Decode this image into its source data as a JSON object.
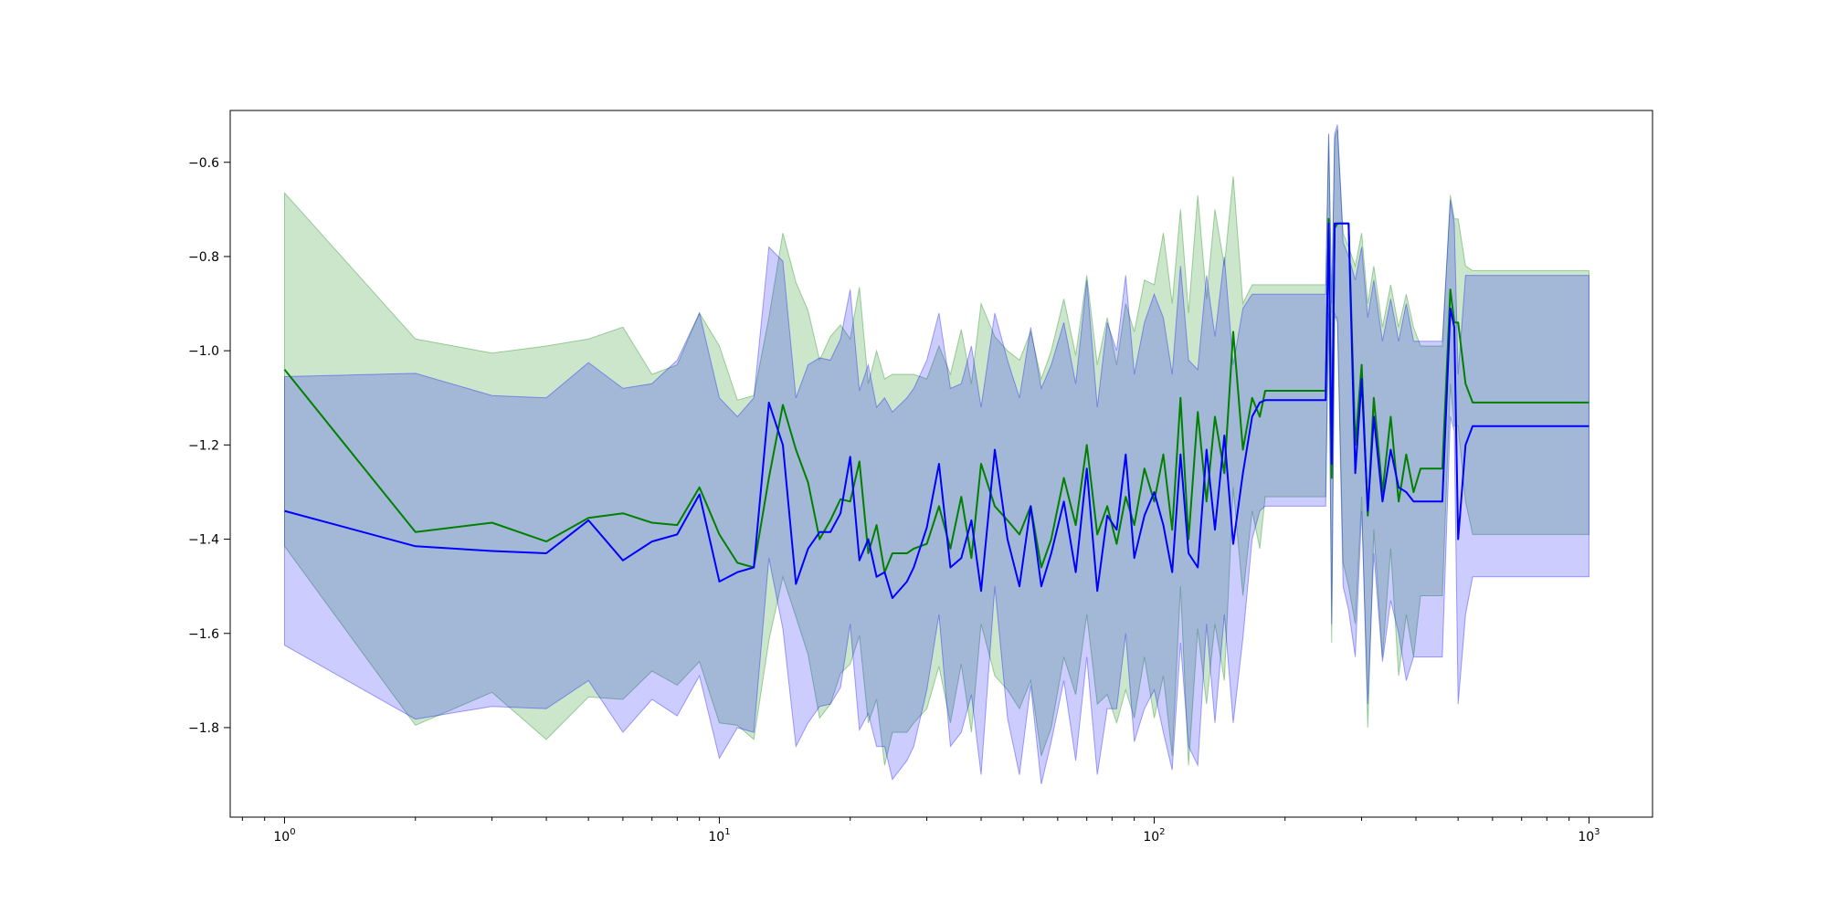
{
  "chart_data": {
    "type": "line",
    "title": "",
    "xlabel": "",
    "ylabel": "",
    "x_scale": "log",
    "xlim": [
      0.75,
      1400
    ],
    "ylim": [
      -1.99,
      -0.49
    ],
    "x_ticks": [
      {
        "value": 1,
        "base": "10",
        "exp": "0"
      },
      {
        "value": 10,
        "base": "10",
        "exp": "1"
      },
      {
        "value": 100,
        "base": "10",
        "exp": "2"
      },
      {
        "value": 1000,
        "base": "10",
        "exp": "3"
      }
    ],
    "y_ticks": [
      {
        "value": -1.8,
        "label": "−1.8"
      },
      {
        "value": -1.6,
        "label": "−1.6"
      },
      {
        "value": -1.4,
        "label": "−1.4"
      },
      {
        "value": -1.2,
        "label": "−1.2"
      },
      {
        "value": -1.0,
        "label": "−1.0"
      },
      {
        "value": -0.8,
        "label": "−0.8"
      },
      {
        "value": -0.6,
        "label": "−0.6"
      }
    ],
    "grid": false,
    "legend": "none",
    "series": [
      {
        "color": "#008000",
        "fill_color": "#008000",
        "fill_opacity": 0.2,
        "x": [
          1,
          2,
          3,
          4,
          5,
          6,
          7,
          8,
          9,
          10,
          11,
          12,
          13,
          14,
          15,
          16,
          17,
          18,
          19,
          20,
          21,
          22,
          23,
          24,
          25,
          27,
          28,
          30,
          32,
          34,
          36,
          38,
          40,
          43,
          46,
          49,
          52,
          55,
          58,
          62,
          66,
          70,
          74,
          78,
          82,
          86,
          90,
          95,
          100,
          105,
          110,
          115,
          120,
          126,
          132,
          138,
          145,
          152,
          160,
          168,
          175,
          180,
          200,
          230,
          248,
          252,
          256,
          260,
          264,
          272,
          280,
          290,
          300,
          310,
          320,
          335,
          350,
          365,
          380,
          395,
          410,
          430,
          460,
          480,
          490,
          500,
          520,
          540,
          560,
          600,
          700,
          800,
          900,
          1000
        ],
        "y": [
          -1.04,
          -1.385,
          -1.365,
          -1.405,
          -1.355,
          -1.345,
          -1.365,
          -1.37,
          -1.29,
          -1.39,
          -1.45,
          -1.46,
          -1.27,
          -1.115,
          -1.21,
          -1.28,
          -1.4,
          -1.36,
          -1.315,
          -1.32,
          -1.235,
          -1.43,
          -1.37,
          -1.47,
          -1.43,
          -1.43,
          -1.42,
          -1.41,
          -1.33,
          -1.42,
          -1.31,
          -1.44,
          -1.24,
          -1.33,
          -1.36,
          -1.39,
          -1.33,
          -1.46,
          -1.4,
          -1.27,
          -1.37,
          -1.2,
          -1.39,
          -1.33,
          -1.41,
          -1.31,
          -1.37,
          -1.25,
          -1.32,
          -1.22,
          -1.38,
          -1.1,
          -1.4,
          -1.13,
          -1.32,
          -1.14,
          -1.26,
          -0.96,
          -1.21,
          -1.1,
          -1.14,
          -1.085,
          -1.085,
          -1.085,
          -1.085,
          -0.72,
          -1.27,
          -0.74,
          -0.73,
          -0.73,
          -0.73,
          -1.2,
          -1.03,
          -1.35,
          -1.1,
          -1.3,
          -1.14,
          -1.32,
          -1.22,
          -1.3,
          -1.25,
          -1.25,
          -1.25,
          -0.87,
          -0.94,
          -0.94,
          -1.07,
          -1.11,
          -1.11,
          -1.11,
          -1.11,
          -1.11,
          -1.11,
          -1.11
        ],
        "y_upper": [
          -0.665,
          -0.975,
          -1.005,
          -0.99,
          -0.975,
          -0.95,
          -1.05,
          -1.03,
          -0.92,
          -0.99,
          -1.105,
          -1.095,
          -0.93,
          -0.75,
          -0.855,
          -0.915,
          -1.02,
          -0.97,
          -0.945,
          -0.975,
          -0.865,
          -1.07,
          -1.0,
          -1.06,
          -1.05,
          -1.05,
          -1.05,
          -1.06,
          -0.99,
          -1.05,
          -0.955,
          -1.07,
          -0.9,
          -0.97,
          -1.0,
          -1.02,
          -0.96,
          -1.06,
          -1.0,
          -0.89,
          -1.01,
          -0.84,
          -1.03,
          -0.93,
          -1.03,
          -0.9,
          -0.96,
          -0.85,
          -0.86,
          -0.75,
          -0.9,
          -0.7,
          -0.92,
          -0.67,
          -0.89,
          -0.7,
          -0.82,
          -0.63,
          -0.9,
          -0.86,
          -0.86,
          -0.86,
          -0.86,
          -0.86,
          -0.86,
          -0.54,
          -0.92,
          -0.55,
          -0.53,
          -0.75,
          -0.78,
          -0.82,
          -0.75,
          -0.9,
          -0.82,
          -0.95,
          -0.86,
          -0.95,
          -0.88,
          -0.95,
          -0.99,
          -0.99,
          -0.99,
          -0.67,
          -0.72,
          -0.72,
          -0.82,
          -0.83,
          -0.83,
          -0.83,
          -0.83,
          -0.83,
          -0.83,
          -0.83
        ],
        "y_lower": [
          -1.415,
          -1.795,
          -1.725,
          -1.825,
          -1.735,
          -1.74,
          -1.68,
          -1.71,
          -1.66,
          -1.79,
          -1.795,
          -1.825,
          -1.615,
          -1.48,
          -1.565,
          -1.645,
          -1.78,
          -1.75,
          -1.685,
          -1.665,
          -1.605,
          -1.79,
          -1.74,
          -1.88,
          -1.81,
          -1.81,
          -1.79,
          -1.76,
          -1.67,
          -1.79,
          -1.665,
          -1.81,
          -1.58,
          -1.69,
          -1.72,
          -1.76,
          -1.7,
          -1.86,
          -1.8,
          -1.65,
          -1.73,
          -1.56,
          -1.75,
          -1.73,
          -1.79,
          -1.72,
          -1.78,
          -1.65,
          -1.78,
          -1.69,
          -1.86,
          -1.5,
          -1.88,
          -1.59,
          -1.75,
          -1.58,
          -1.7,
          -1.29,
          -1.52,
          -1.34,
          -1.42,
          -1.31,
          -1.31,
          -1.31,
          -1.31,
          -0.9,
          -1.62,
          -0.93,
          -0.93,
          -1.45,
          -1.5,
          -1.58,
          -1.31,
          -1.8,
          -1.38,
          -1.65,
          -1.42,
          -1.69,
          -1.56,
          -1.65,
          -1.52,
          -1.52,
          -1.52,
          -1.07,
          -1.16,
          -1.16,
          -1.32,
          -1.39,
          -1.39,
          -1.39,
          -1.39,
          -1.39,
          -1.39,
          -1.39
        ]
      },
      {
        "color": "#0000ff",
        "fill_color": "#0000ff",
        "fill_opacity": 0.2,
        "x": [
          1,
          2,
          3,
          4,
          5,
          6,
          7,
          8,
          9,
          10,
          11,
          12,
          13,
          14,
          15,
          16,
          17,
          18,
          19,
          20,
          21,
          22,
          23,
          24,
          25,
          27,
          28,
          30,
          32,
          34,
          36,
          38,
          40,
          43,
          46,
          49,
          52,
          55,
          58,
          62,
          66,
          70,
          74,
          78,
          82,
          86,
          90,
          95,
          100,
          105,
          110,
          115,
          120,
          126,
          132,
          138,
          145,
          152,
          160,
          168,
          175,
          180,
          200,
          230,
          248,
          252,
          256,
          260,
          264,
          272,
          280,
          290,
          300,
          310,
          320,
          335,
          350,
          365,
          380,
          395,
          410,
          430,
          460,
          480,
          490,
          500,
          520,
          540,
          560,
          600,
          700,
          800,
          900,
          1000
        ],
        "y": [
          -1.34,
          -1.415,
          -1.425,
          -1.43,
          -1.36,
          -1.445,
          -1.405,
          -1.39,
          -1.305,
          -1.49,
          -1.47,
          -1.46,
          -1.11,
          -1.2,
          -1.495,
          -1.42,
          -1.385,
          -1.385,
          -1.345,
          -1.225,
          -1.445,
          -1.4,
          -1.48,
          -1.47,
          -1.525,
          -1.49,
          -1.46,
          -1.375,
          -1.24,
          -1.46,
          -1.44,
          -1.36,
          -1.51,
          -1.21,
          -1.4,
          -1.5,
          -1.33,
          -1.5,
          -1.43,
          -1.32,
          -1.47,
          -1.25,
          -1.51,
          -1.35,
          -1.38,
          -1.22,
          -1.44,
          -1.35,
          -1.3,
          -1.37,
          -1.47,
          -1.22,
          -1.43,
          -1.46,
          -1.21,
          -1.38,
          -1.18,
          -1.41,
          -1.26,
          -1.14,
          -1.11,
          -1.105,
          -1.105,
          -1.105,
          -1.105,
          -0.73,
          -1.24,
          -0.73,
          -0.73,
          -0.73,
          -0.73,
          -1.26,
          -1.06,
          -1.34,
          -1.14,
          -1.32,
          -1.21,
          -1.29,
          -1.3,
          -1.32,
          -1.32,
          -1.32,
          -1.32,
          -0.91,
          -0.95,
          -1.4,
          -1.2,
          -1.16,
          -1.16,
          -1.16,
          -1.16,
          -1.16,
          -1.16,
          -1.16
        ],
        "y_upper": [
          -1.055,
          -1.048,
          -1.095,
          -1.1,
          -1.025,
          -1.08,
          -1.07,
          -1.02,
          -0.92,
          -1.1,
          -1.14,
          -1.1,
          -0.78,
          -0.81,
          -1.1,
          -1.03,
          -1.015,
          -1.02,
          -0.975,
          -0.87,
          -1.085,
          -1.03,
          -1.12,
          -1.1,
          -1.13,
          -1.1,
          -1.08,
          -1.02,
          -0.92,
          -1.08,
          -1.07,
          -0.99,
          -1.12,
          -0.92,
          -1.02,
          -1.1,
          -0.95,
          -1.08,
          -1.03,
          -0.94,
          -1.07,
          -0.85,
          -1.12,
          -0.94,
          -1.0,
          -0.84,
          -1.05,
          -0.94,
          -0.88,
          -0.93,
          -1.05,
          -0.82,
          -1.02,
          -1.04,
          -0.84,
          -0.97,
          -0.8,
          -1.03,
          -0.91,
          -0.88,
          -0.88,
          -0.88,
          -0.88,
          -0.88,
          -0.88,
          -0.54,
          -0.9,
          -0.54,
          -0.52,
          -0.77,
          -0.8,
          -0.85,
          -0.78,
          -0.93,
          -0.85,
          -0.98,
          -0.89,
          -0.98,
          -0.9,
          -0.98,
          -0.98,
          -0.98,
          -0.98,
          -0.68,
          -0.73,
          -1.05,
          -0.84,
          -0.84,
          -0.84,
          -0.84,
          -0.84,
          -0.84,
          -0.84,
          -0.84
        ],
        "y_lower": [
          -1.625,
          -1.782,
          -1.755,
          -1.76,
          -1.7,
          -1.81,
          -1.74,
          -1.775,
          -1.69,
          -1.865,
          -1.8,
          -1.81,
          -1.44,
          -1.59,
          -1.84,
          -1.79,
          -1.755,
          -1.75,
          -1.715,
          -1.58,
          -1.805,
          -1.77,
          -1.84,
          -1.84,
          -1.91,
          -1.87,
          -1.84,
          -1.72,
          -1.56,
          -1.84,
          -1.81,
          -1.73,
          -1.9,
          -1.5,
          -1.78,
          -1.9,
          -1.71,
          -1.92,
          -1.83,
          -1.7,
          -1.87,
          -1.65,
          -1.9,
          -1.76,
          -1.76,
          -1.6,
          -1.83,
          -1.76,
          -1.72,
          -1.81,
          -1.89,
          -1.62,
          -1.84,
          -1.88,
          -1.58,
          -1.79,
          -1.56,
          -1.79,
          -1.61,
          -1.4,
          -1.34,
          -1.33,
          -1.33,
          -1.33,
          -1.33,
          -0.92,
          -1.58,
          -0.92,
          -0.94,
          -1.5,
          -1.55,
          -1.65,
          -1.34,
          -1.75,
          -1.43,
          -1.66,
          -1.53,
          -1.6,
          -1.7,
          -1.65,
          -1.65,
          -1.65,
          -1.65,
          -1.14,
          -1.17,
          -1.75,
          -1.56,
          -1.48,
          -1.48,
          -1.48,
          -1.48,
          -1.48,
          -1.48,
          -1.48
        ]
      }
    ]
  }
}
